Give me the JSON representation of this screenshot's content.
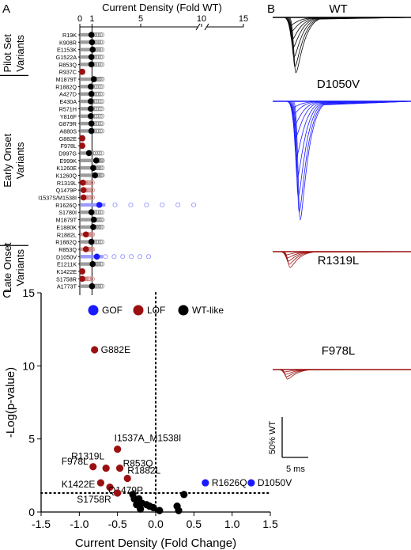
{
  "panel_labels": {
    "a": "A",
    "b": "B",
    "c": "C"
  },
  "colors": {
    "gof": "#1a1aff",
    "lof": "#9b1111",
    "wt": "#000000",
    "grey": "#8c8c8c"
  },
  "chart_data": [
    {
      "type": "scatter",
      "panel": "A",
      "title": "Current Density (Fold WT)",
      "xlabel": "Current Density (Fold WT)",
      "xticks": [
        "0",
        "1",
        "5",
        "10",
        "15"
      ],
      "groups": [
        {
          "name": "Pilot Set Variants",
          "variants": [
            "R19K",
            "K908R",
            "E1153K",
            "G1522A",
            "R853Q",
            "R937C"
          ]
        },
        {
          "name": "Early Onset Variants",
          "variants": [
            "M1879T",
            "R1882Q",
            "A427D",
            "E430A",
            "R571H",
            "Y816F",
            "G879R",
            "A880S",
            "G882E",
            "F978L",
            "D997G",
            "E999K",
            "K1260E",
            "K1260Q",
            "R1319L",
            "Q1479P",
            "I1537S/M1538I",
            "R1626Q",
            "S1780I",
            "M1879T",
            "E1880K",
            "R1882L",
            "R1882Q"
          ]
        },
        {
          "name": "Late Onset Variants",
          "variants": [
            "R853Q",
            "D1050V",
            "E1211K",
            "K1422E",
            "S1758R",
            "A1773T"
          ]
        }
      ],
      "means": [
        0.95,
        1.0,
        1.05,
        0.95,
        0.95,
        0.0,
        1.15,
        0.9,
        0.95,
        0.9,
        0.9,
        0.9,
        0.95,
        0.95,
        0.0,
        0.0,
        0.75,
        1.35,
        1.1,
        1.25,
        0.25,
        0.3,
        0.3,
        1.6,
        0.95,
        1.15,
        1.1,
        0.5,
        0.95,
        0.5,
        1.4,
        1.05,
        0.1,
        0.2,
        1.0
      ],
      "classes": [
        "wt",
        "wt",
        "wt",
        "wt",
        "wt",
        "lof",
        "wt",
        "wt",
        "wt",
        "wt",
        "wt",
        "wt",
        "wt",
        "wt",
        "lof",
        "lof",
        "wt",
        "wt",
        "wt",
        "wt",
        "lof",
        "lof",
        "lof",
        "gof",
        "wt",
        "wt",
        "wt",
        "lof",
        "wt",
        "lof",
        "gof",
        "wt",
        "lof",
        "lof",
        "wt"
      ],
      "legend": [
        {
          "label": "GOF",
          "class": "gof"
        },
        {
          "label": "LOF",
          "class": "lof"
        },
        {
          "label": "WT-like",
          "class": "wt"
        }
      ]
    },
    {
      "type": "scatter",
      "panel": "C",
      "xlabel": "Current Density (Fold Change)",
      "ylabel": "-Log(p-value)",
      "xlim": [
        -1.5,
        1.5
      ],
      "ylim": [
        0,
        15
      ],
      "xticks": [
        "-1.5",
        "-1.0",
        "-0.5",
        "0.0",
        "0.5",
        "1.0",
        "1.5"
      ],
      "yticks": [
        "0",
        "5",
        "10",
        "15"
      ],
      "points": [
        {
          "x": -0.8,
          "y": 11.1,
          "class": "lof",
          "label": "G882E"
        },
        {
          "x": -0.5,
          "y": 4.3,
          "class": "lof",
          "label": "I1537A_M1538I"
        },
        {
          "x": -0.47,
          "y": 3.0,
          "class": "lof",
          "label": "R853Q"
        },
        {
          "x": -0.65,
          "y": 3.0,
          "class": "lof",
          "label": "R1319L"
        },
        {
          "x": -0.82,
          "y": 3.1,
          "class": "lof",
          "label": "F978L"
        },
        {
          "x": -0.37,
          "y": 2.3,
          "class": "lof",
          "label": "R1882L"
        },
        {
          "x": -0.72,
          "y": 2.0,
          "class": "lof",
          "label": "K1422E"
        },
        {
          "x": -0.6,
          "y": 1.7,
          "class": "lof",
          "label": "Q1479P"
        },
        {
          "x": -0.5,
          "y": 1.3,
          "class": "lof",
          "label": "S1758R"
        },
        {
          "x": 0.65,
          "y": 2.0,
          "class": "gof",
          "label": "R1626Q"
        },
        {
          "x": 1.25,
          "y": 2.0,
          "class": "gof",
          "label": "D1050V"
        },
        {
          "x": 0.37,
          "y": 1.2,
          "class": "wt",
          "label": ""
        },
        {
          "x": -0.3,
          "y": 1.2,
          "class": "wt",
          "label": ""
        },
        {
          "x": -0.28,
          "y": 0.9,
          "class": "wt",
          "label": ""
        },
        {
          "x": -0.22,
          "y": 0.9,
          "class": "wt",
          "label": ""
        },
        {
          "x": -0.18,
          "y": 0.6,
          "class": "wt",
          "label": ""
        },
        {
          "x": -0.12,
          "y": 0.5,
          "class": "wt",
          "label": ""
        },
        {
          "x": -0.08,
          "y": 0.4,
          "class": "wt",
          "label": ""
        },
        {
          "x": -0.03,
          "y": 0.3,
          "class": "wt",
          "label": ""
        },
        {
          "x": 0.05,
          "y": 0.1,
          "class": "wt",
          "label": ""
        },
        {
          "x": 0.28,
          "y": 0.4,
          "class": "wt",
          "label": ""
        },
        {
          "x": -0.25,
          "y": 0.5,
          "class": "wt",
          "label": ""
        },
        {
          "x": 0.3,
          "y": 0.1,
          "class": "wt",
          "label": ""
        },
        {
          "x": -0.2,
          "y": 0.2,
          "class": "wt",
          "label": ""
        }
      ],
      "threshold_y": 1.3
    }
  ],
  "traces": {
    "labels": [
      "WT",
      "D1050V",
      "R1319L",
      "F978L"
    ],
    "scale_y": "50% WT",
    "scale_x": "5 ms"
  }
}
